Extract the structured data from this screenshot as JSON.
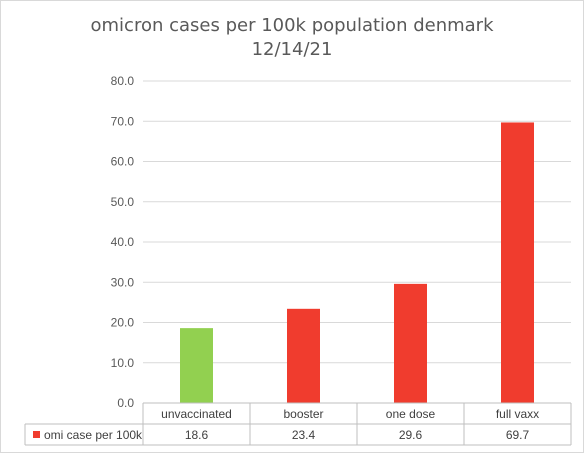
{
  "chart_data": {
    "type": "bar",
    "title": "omicron cases per 100k population denmark",
    "subtitle": "12/14/21",
    "categories": [
      "unvaccinated",
      "booster",
      "one dose",
      "full vaxx"
    ],
    "series": [
      {
        "name": "omi case per 100k",
        "values": [
          18.6,
          23.4,
          29.6,
          69.7
        ]
      }
    ],
    "data_labels": [
      "18.6",
      "23.4",
      "29.6",
      "69.7"
    ],
    "bar_colors": [
      "#92d050",
      "#f03c2e",
      "#f03c2e",
      "#f03c2e"
    ],
    "legend_color": "#f03c2e",
    "yticks": [
      "0.0",
      "10.0",
      "20.0",
      "30.0",
      "40.0",
      "50.0",
      "60.0",
      "70.0",
      "80.0"
    ],
    "ylim": [
      0,
      80
    ],
    "grid": true,
    "legend": "data-table"
  }
}
